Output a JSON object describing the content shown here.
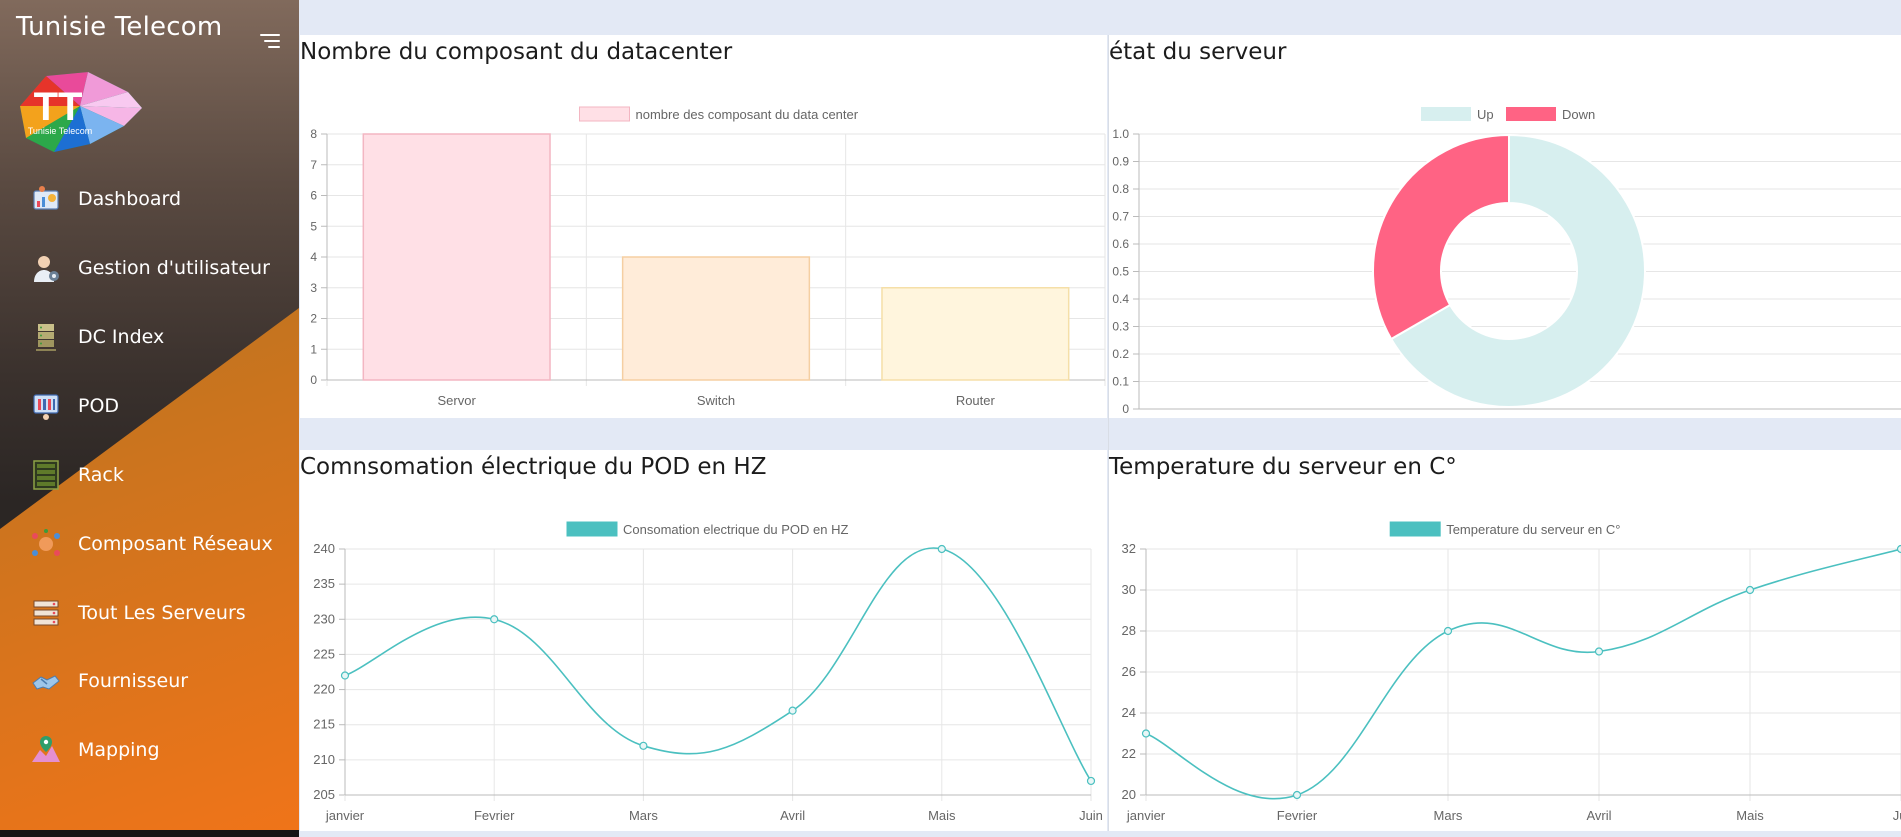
{
  "app": {
    "title": "Tunisie Telecom",
    "logo_text": "TT",
    "logo_caption": "Tunisie Telecom"
  },
  "nav": [
    {
      "label": "Dashboard",
      "icon": "dashboard-icon"
    },
    {
      "label": "Gestion d'utilisateur",
      "icon": "user-management-icon"
    },
    {
      "label": "DC Index",
      "icon": "datacenter-icon"
    },
    {
      "label": "POD",
      "icon": "pod-icon"
    },
    {
      "label": "Rack",
      "icon": "rack-icon"
    },
    {
      "label": "Composant Réseaux",
      "icon": "network-icon"
    },
    {
      "label": "Tout Les Serveurs",
      "icon": "servers-icon"
    },
    {
      "label": "Fournisseur",
      "icon": "supplier-icon"
    },
    {
      "label": "Mapping",
      "icon": "map-icon"
    }
  ],
  "panels": {
    "datacenter": {
      "title": "Nombre du composant du datacenter"
    },
    "server_state": {
      "title": "état du serveur"
    },
    "pod_power": {
      "title": "Comnsomation électrique du POD en HZ"
    },
    "server_temp": {
      "title": "Temperature du serveur en C°"
    }
  },
  "chart_data": [
    {
      "type": "bar",
      "categories": [
        "Servor",
        "Switch",
        "Router"
      ],
      "series": [
        {
          "name": "nombre des composant du data center",
          "values": [
            8,
            4,
            3
          ]
        }
      ],
      "colors": {
        "fill": [
          "#ffe0e6",
          "#ffecd9",
          "#fff5dd"
        ],
        "stroke": [
          "#f3b6c2",
          "#f5cfa2",
          "#f5dfa8"
        ],
        "legend": "#ffe0e6"
      },
      "ylim": [
        0,
        8
      ],
      "yticks": [
        "0",
        "1",
        "2",
        "3",
        "4",
        "5",
        "6",
        "7",
        "8"
      ],
      "grid": true,
      "legend_position": "top"
    },
    {
      "type": "pie",
      "variant": "doughnut",
      "labels": [
        "Up",
        "Down"
      ],
      "values": [
        2,
        1
      ],
      "colors": [
        "#d7efef",
        "#ff6384"
      ],
      "yticks": [
        "0",
        "0.1",
        "0.2",
        "0.3",
        "0.4",
        "0.5",
        "0.6",
        "0.7",
        "0.8",
        "0.9",
        "1.0"
      ],
      "ylim": [
        0,
        1
      ],
      "grid": true,
      "legend_position": "top"
    },
    {
      "type": "line",
      "categories": [
        "janvier",
        "Fevrier",
        "Mars",
        "Avril",
        "Mais",
        "Juin"
      ],
      "series": [
        {
          "name": "Consomation electrique du POD en HZ",
          "values": [
            222,
            230,
            212,
            217,
            240,
            207
          ]
        }
      ],
      "color": "#4bc0c0",
      "ylim": [
        205,
        240
      ],
      "yticks": [
        "205",
        "210",
        "215",
        "220",
        "225",
        "230",
        "235",
        "240"
      ],
      "grid": true,
      "legend_position": "top"
    },
    {
      "type": "line",
      "categories": [
        "janvier",
        "Fevrier",
        "Mars",
        "Avril",
        "Mais",
        "Jui"
      ],
      "series": [
        {
          "name": "Temperature du serveur en C°",
          "values": [
            23,
            20,
            28,
            27,
            30,
            32
          ]
        }
      ],
      "color": "#4bc0c0",
      "ylim": [
        20,
        32
      ],
      "yticks": [
        "20",
        "22",
        "24",
        "26",
        "28",
        "30",
        "32"
      ],
      "grid": true,
      "legend_position": "top"
    }
  ]
}
